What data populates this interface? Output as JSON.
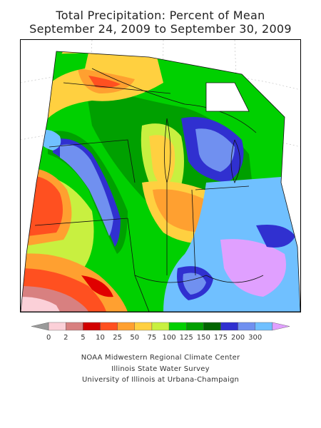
{
  "title": {
    "line1": "Total Precipitation: Percent of Mean",
    "line2": "September 24, 2009 to September 30, 2009"
  },
  "legend": {
    "tick_labels": [
      "0",
      "2",
      "5",
      "10",
      "25",
      "50",
      "75",
      "100",
      "125",
      "150",
      "175",
      "200",
      "300"
    ],
    "colors": [
      "#9a9a9a",
      "#fbd0d8",
      "#d88080",
      "#d20000",
      "#ff5020",
      "#ffa030",
      "#ffd040",
      "#c8f040",
      "#00d000",
      "#00a000",
      "#006400",
      "#3030d0",
      "#7090f0",
      "#70c0ff",
      "#e0a0ff"
    ]
  },
  "map": {
    "region": "Midwest US",
    "colors": {
      "lt_pink": "#fbd0d8",
      "dk_pink": "#d88080",
      "red": "#e00000",
      "orange_red": "#ff5020",
      "orange": "#ffa030",
      "yellow": "#ffd040",
      "lime": "#c8f040",
      "green": "#00d000",
      "mid_green": "#00a000",
      "dk_green": "#006400",
      "blue": "#3030d0",
      "med_blue": "#7090f0",
      "lt_blue": "#70c0ff",
      "lavender": "#e0a0ff"
    }
  },
  "credits": {
    "line1": "NOAA Midwestern Regional Climate Center",
    "line2": "Illinois State Water Survey",
    "line3": "University of Illinois at Urbana-Champaign"
  }
}
